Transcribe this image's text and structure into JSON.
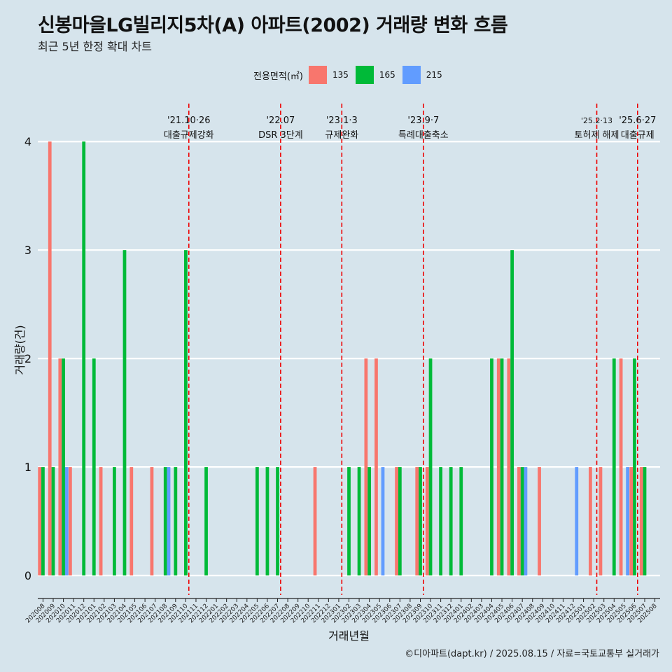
{
  "header": {
    "title": "신봉마을LG빌리지5차(A) 아파트(2002) 거래량 변화 흐름",
    "subtitle": "최근 5년 한정 확대 차트"
  },
  "legend": {
    "title": "전용면적(㎡)",
    "items": [
      {
        "label": "135",
        "color": "#f8766d"
      },
      {
        "label": "165",
        "color": "#00ba38"
      },
      {
        "label": "215",
        "color": "#619cff"
      }
    ]
  },
  "caption": "©디아파트(dapt.kr) / 2025.08.15 / 자료=국토교통부 실거래가",
  "chart_data": {
    "type": "bar",
    "xlabel": "거래년월",
    "ylabel": "거래량(건)",
    "ylim": [
      -0.18,
      4.35
    ],
    "yticks": [
      0,
      1,
      2,
      3,
      4
    ],
    "grid": true,
    "legend_position": "top",
    "categories": [
      "202008",
      "202009",
      "202010",
      "202011",
      "202012",
      "202101",
      "202102",
      "202103",
      "202104",
      "202105",
      "202106",
      "202107",
      "202108",
      "202109",
      "202110",
      "202111",
      "202112",
      "202201",
      "202202",
      "202203",
      "202204",
      "202205",
      "202206",
      "202207",
      "202208",
      "202209",
      "202210",
      "202211",
      "202212",
      "202301",
      "202302",
      "202303",
      "202304",
      "202305",
      "202306",
      "202307",
      "202308",
      "202309",
      "202310",
      "202311",
      "202312",
      "202401",
      "202402",
      "202403",
      "202404",
      "202405",
      "202406",
      "202407",
      "202408",
      "202409",
      "202410",
      "202411",
      "202412",
      "202501",
      "202502",
      "202503",
      "202504",
      "202505",
      "202506",
      "202507",
      "202508"
    ],
    "series": [
      {
        "name": "135",
        "color": "#f8766d",
        "values": [
          1,
          4,
          2,
          1,
          0,
          0,
          1,
          0,
          0,
          1,
          0,
          1,
          0,
          0,
          0,
          0,
          0,
          0,
          0,
          0,
          0,
          0,
          0,
          0,
          0,
          0,
          0,
          1,
          0,
          0,
          0,
          0,
          2,
          2,
          0,
          1,
          0,
          1,
          1,
          0,
          0,
          0,
          0,
          0,
          0,
          2,
          2,
          1,
          0,
          1,
          0,
          0,
          0,
          0,
          1,
          1,
          0,
          2,
          1,
          1,
          0
        ]
      },
      {
        "name": "165",
        "color": "#00ba38",
        "values": [
          1,
          1,
          2,
          0,
          4,
          2,
          0,
          1,
          3,
          0,
          0,
          0,
          1,
          1,
          3,
          0,
          1,
          0,
          0,
          0,
          0,
          1,
          1,
          1,
          0,
          0,
          0,
          0,
          0,
          0,
          1,
          1,
          1,
          0,
          0,
          1,
          0,
          1,
          2,
          1,
          1,
          1,
          0,
          0,
          2,
          2,
          3,
          1,
          0,
          0,
          0,
          0,
          0,
          0,
          0,
          0,
          2,
          0,
          2,
          1,
          0
        ]
      },
      {
        "name": "215",
        "color": "#619cff",
        "values": [
          0,
          0,
          1,
          0,
          0,
          0,
          0,
          0,
          0,
          0,
          0,
          0,
          1,
          0,
          0,
          0,
          0,
          0,
          0,
          0,
          0,
          0,
          0,
          0,
          0,
          0,
          0,
          0,
          0,
          0,
          0,
          0,
          0,
          1,
          0,
          0,
          0,
          0,
          0,
          0,
          0,
          0,
          0,
          0,
          0,
          0,
          0,
          1,
          0,
          0,
          0,
          0,
          1,
          0,
          0,
          0,
          0,
          1,
          0,
          0,
          0
        ]
      }
    ],
    "events": [
      {
        "date": "'21.10·26",
        "label": "대출규제강화",
        "index": 14.3
      },
      {
        "date": "'22.07",
        "label": "DSR 3단계",
        "index": 23.3
      },
      {
        "date": "'23.1·3",
        "label": "규제완화",
        "index": 29.3
      },
      {
        "date": "'23.9·7",
        "label": "특례대출축소",
        "index": 37.3
      },
      {
        "date": "'25.2·13",
        "label": "토허제 해제",
        "index": 54.3
      },
      {
        "date": "'25.6·27",
        "label": "대출규제",
        "index": 58.3
      }
    ]
  }
}
